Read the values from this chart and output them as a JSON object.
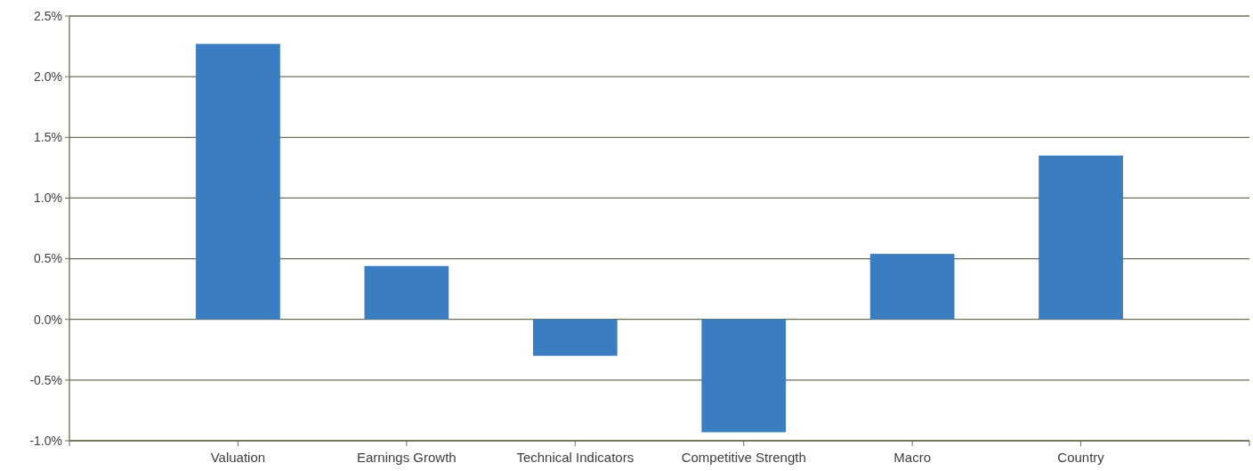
{
  "chart_data": {
    "type": "bar",
    "categories": [
      "Valuation",
      "Earnings Growth",
      "Technical Indicators",
      "Competitive Strength",
      "Macro",
      "Country"
    ],
    "values": [
      2.27,
      0.44,
      -0.3,
      -0.93,
      0.54,
      1.35
    ],
    "color": "#3a7dc1",
    "ylim": [
      -1.0,
      2.5
    ],
    "yticks": [
      {
        "value": -1.0,
        "label": "-1.0%"
      },
      {
        "value": -0.5,
        "label": "-0.5%"
      },
      {
        "value": 0.0,
        "label": "0.0%"
      },
      {
        "value": 0.5,
        "label": "0.5%"
      },
      {
        "value": 1.0,
        "label": "1.0%"
      },
      {
        "value": 1.5,
        "label": "1.5%"
      },
      {
        "value": 2.0,
        "label": "2.0%"
      },
      {
        "value": 2.5,
        "label": "2.5%"
      }
    ],
    "grid": "y"
  }
}
